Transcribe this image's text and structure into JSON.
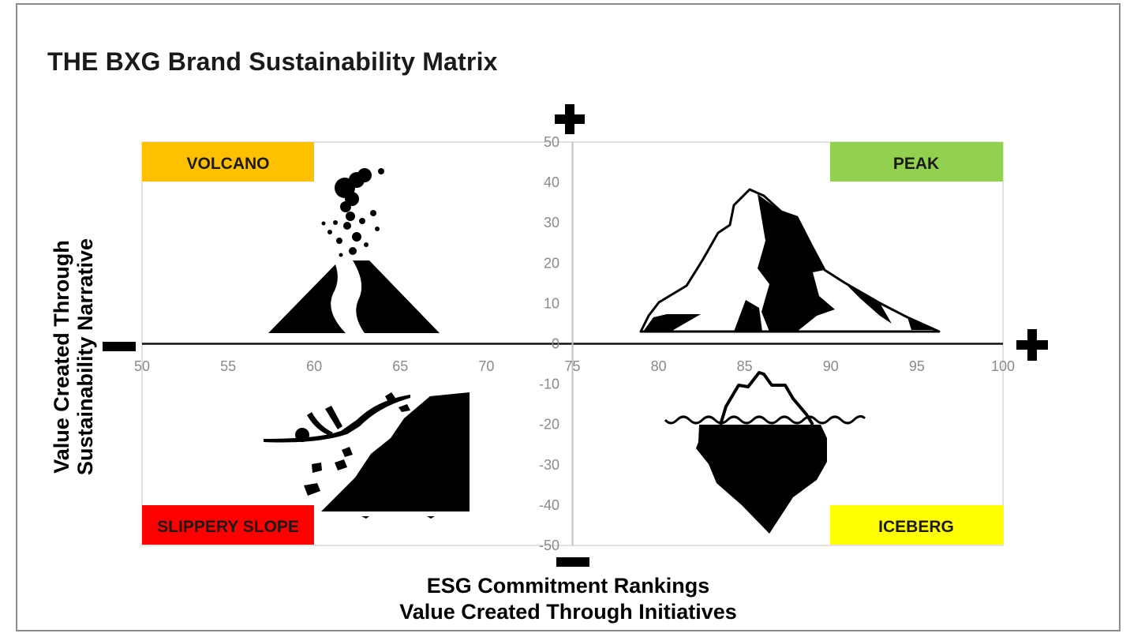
{
  "title": "THE BXG Brand Sustainability Matrix",
  "axes": {
    "x_title_line1": "ESG Commitment Rankings",
    "x_title_line2": "Value Created Through Initiatives",
    "y_title_line1": "Value Created Through",
    "y_title_line2": "Sustainability Narrative"
  },
  "quadrants": [
    {
      "id": "volcano",
      "label": "VOLCANO",
      "color": "#ffc000",
      "icon": "volcano-icon"
    },
    {
      "id": "peak",
      "label": "PEAK",
      "color": "#92d050",
      "icon": "mountain-peak-icon"
    },
    {
      "id": "slippery-slope",
      "label": "SLIPPERY SLOPE",
      "color": "#ff0000",
      "icon": "falling-person-icon"
    },
    {
      "id": "iceberg",
      "label": "ICEBERG",
      "color": "#ffff00",
      "icon": "iceberg-icon"
    }
  ],
  "chart_data": {
    "type": "scatter",
    "xlim": [
      50,
      100
    ],
    "ylim": [
      -50,
      50
    ],
    "x_ticks": [
      "50",
      "55",
      "60",
      "65",
      "70",
      "75",
      "80",
      "85",
      "90",
      "95",
      "100"
    ],
    "y_ticks": [
      "50",
      "40",
      "30",
      "20",
      "10",
      "0",
      "-10",
      "-20",
      "-30",
      "-40",
      "-50"
    ],
    "grid": false
  }
}
